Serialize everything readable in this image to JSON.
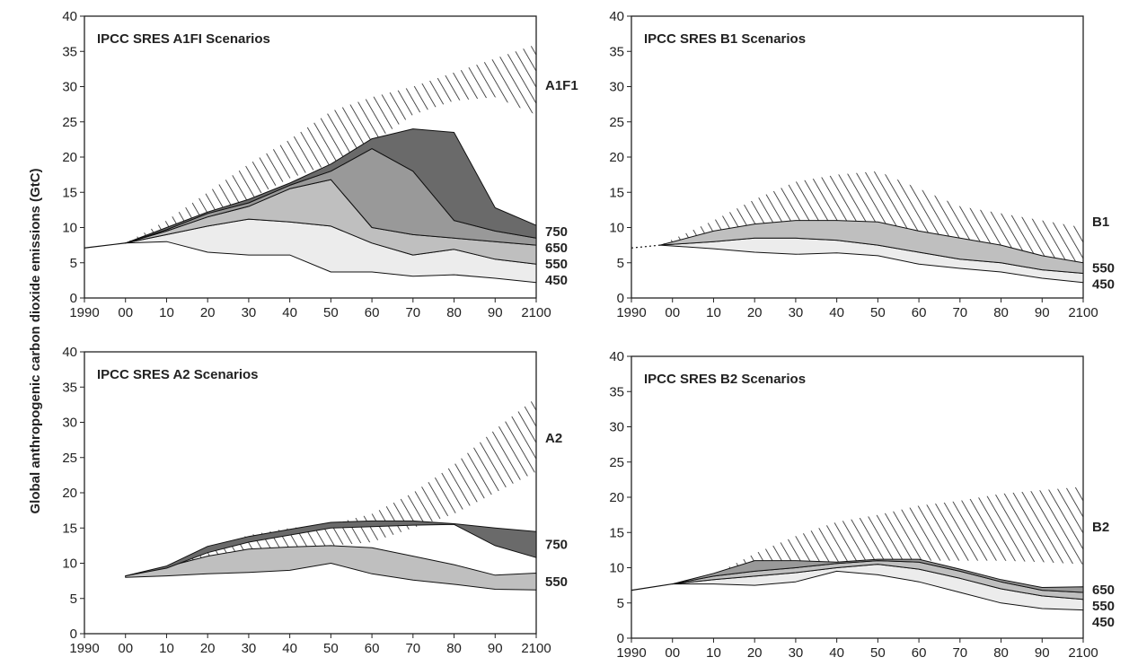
{
  "figure": {
    "ylabel": "Global anthropogenic carbon dioxide emissions (GtC)"
  },
  "chart_data": [
    {
      "type": "area",
      "title": "IPCC SRES A1FI Scenarios",
      "x": [
        1990,
        2000,
        2010,
        2020,
        2030,
        2040,
        2050,
        2060,
        2070,
        2080,
        2090,
        2100
      ],
      "xtick_labels": [
        "1990",
        "00",
        "10",
        "20",
        "30",
        "40",
        "50",
        "60",
        "70",
        "80",
        "90",
        "2100"
      ],
      "yticks": [
        0,
        5,
        10,
        15,
        20,
        25,
        30,
        35,
        40
      ],
      "ylim": [
        0,
        40
      ],
      "xlim": [
        1990,
        2100
      ],
      "baseline": {
        "x": [
          1990,
          2000
        ],
        "y": [
          7.1,
          7.8
        ]
      },
      "reference": {
        "label": "A1F1",
        "x": [
          2000,
          2010,
          2020,
          2030,
          2040,
          2050,
          2060,
          2070,
          2080,
          2090,
          2100
        ],
        "lower": [
          7.8,
          9.5,
          11.5,
          14,
          17,
          19,
          22,
          26,
          28,
          28.5,
          26
        ],
        "upper": [
          7.8,
          11,
          15,
          19,
          22.5,
          26.5,
          28.5,
          30,
          32,
          34,
          36
        ]
      },
      "bands": [
        {
          "label": "450",
          "x": [
            2000,
            2010,
            2020,
            2030,
            2040,
            2050,
            2060,
            2070,
            2080,
            2090,
            2100
          ],
          "lower": [
            7.8,
            8,
            6.5,
            6.1,
            6.1,
            3.7,
            3.7,
            3.1,
            3.3,
            2.8,
            2.2
          ],
          "upper": [
            7.8,
            9,
            10.2,
            11.2,
            10.8,
            10.2,
            7.8,
            6.1,
            6.9,
            5.5,
            4.8
          ]
        },
        {
          "label": "550",
          "x": [
            2000,
            2010,
            2020,
            2030,
            2040,
            2050,
            2060,
            2070,
            2080,
            2090,
            2100
          ],
          "lower": [
            7.8,
            9,
            10.2,
            11.2,
            10.8,
            10.2,
            7.8,
            6.1,
            6.9,
            5.5,
            4.8
          ],
          "upper": [
            7.8,
            9.5,
            11.5,
            13,
            15.5,
            16.8,
            10,
            9,
            8.5,
            8,
            7.5
          ]
        },
        {
          "label": "650",
          "x": [
            2000,
            2010,
            2020,
            2030,
            2040,
            2050,
            2060,
            2070,
            2080,
            2090,
            2100
          ],
          "lower": [
            7.8,
            9.5,
            11.5,
            13,
            15.5,
            16.8,
            10,
            9,
            8.5,
            8,
            7.5
          ],
          "upper": [
            7.8,
            9.7,
            12,
            13.5,
            16,
            18,
            21.2,
            18,
            11,
            9.5,
            8.5
          ]
        },
        {
          "label": "750",
          "x": [
            2000,
            2010,
            2020,
            2030,
            2040,
            2050,
            2060,
            2070,
            2080,
            2090,
            2100
          ],
          "lower": [
            7.8,
            9.7,
            12,
            13.5,
            16,
            18,
            21.2,
            18,
            11,
            9.5,
            8.5
          ],
          "upper": [
            7.8,
            10,
            12.2,
            14,
            16.3,
            19,
            22.6,
            24,
            23.5,
            12.8,
            10.3
          ]
        }
      ]
    },
    {
      "type": "area",
      "title": "IPCC SRES B1 Scenarios",
      "x": [
        1990,
        2000,
        2010,
        2020,
        2030,
        2040,
        2050,
        2060,
        2070,
        2080,
        2090,
        2100
      ],
      "xtick_labels": [
        "1990",
        "00",
        "10",
        "20",
        "30",
        "40",
        "50",
        "60",
        "70",
        "80",
        "90",
        "2100"
      ],
      "yticks": [
        0,
        5,
        10,
        15,
        20,
        25,
        30,
        35,
        40
      ],
      "ylim": [
        0,
        40
      ],
      "xlim": [
        1990,
        2100
      ],
      "baseline": {
        "x": [
          1990,
          1997
        ],
        "y": [
          7.1,
          7.5
        ],
        "dashed": true
      },
      "reference": {
        "label": "B1",
        "x": [
          1997,
          2010,
          2020,
          2030,
          2040,
          2050,
          2060,
          2070,
          2080,
          2090,
          2100
        ],
        "lower": [
          7.5,
          9,
          10,
          10.5,
          10.5,
          10.5,
          8.5,
          7.5,
          6.5,
          5.5,
          4.5
        ],
        "upper": [
          7.5,
          11,
          14,
          16.5,
          17.5,
          18,
          15.5,
          13,
          12,
          11,
          10
        ]
      },
      "bands": [
        {
          "label": "450",
          "x": [
            1997,
            2010,
            2020,
            2030,
            2040,
            2050,
            2060,
            2070,
            2080,
            2090,
            2100
          ],
          "lower": [
            7.5,
            7,
            6.5,
            6.2,
            6.4,
            6,
            4.8,
            4.2,
            3.7,
            2.8,
            2.2
          ],
          "upper": [
            7.5,
            8,
            8.5,
            8.5,
            8.2,
            7.5,
            6.5,
            5.5,
            5,
            4,
            3.5
          ]
        },
        {
          "label": "550",
          "x": [
            1997,
            2010,
            2020,
            2030,
            2040,
            2050,
            2060,
            2070,
            2080,
            2090,
            2100
          ],
          "lower": [
            7.5,
            8,
            8.5,
            8.5,
            8.2,
            7.5,
            6.5,
            5.5,
            5,
            4,
            3.5
          ],
          "upper": [
            7.5,
            9.5,
            10.5,
            11,
            11,
            10.8,
            9.5,
            8.5,
            7.5,
            6,
            5
          ]
        }
      ]
    },
    {
      "type": "area",
      "title": "IPCC SRES A2 Scenarios",
      "x": [
        1990,
        2000,
        2010,
        2020,
        2030,
        2040,
        2050,
        2060,
        2070,
        2080,
        2090,
        2100
      ],
      "xtick_labels": [
        "1990",
        "00",
        "10",
        "20",
        "30",
        "40",
        "50",
        "60",
        "70",
        "80",
        "90",
        "2100"
      ],
      "yticks": [
        0,
        5,
        10,
        15,
        20,
        25,
        30,
        35,
        40
      ],
      "ylim": [
        0,
        40
      ],
      "xlim": [
        1990,
        2100
      ],
      "reference": {
        "label": "A2",
        "x": [
          2000,
          2010,
          2020,
          2030,
          2040,
          2050,
          2060,
          2070,
          2080,
          2090,
          2100
        ],
        "lower": [
          8.2,
          9,
          9.5,
          10.5,
          11.5,
          12.5,
          13,
          15,
          17,
          20,
          23
        ],
        "upper": [
          8.2,
          9.5,
          12,
          14,
          15,
          15.5,
          17,
          20,
          24,
          29,
          33.5
        ]
      },
      "bands": [
        {
          "label": "550",
          "x": [
            2000,
            2010,
            2020,
            2030,
            2040,
            2050,
            2060,
            2070,
            2080,
            2090,
            2100
          ],
          "lower": [
            8,
            8.2,
            8.5,
            8.7,
            9,
            10,
            8.5,
            7.6,
            7,
            6.3,
            6.2
          ],
          "upper": [
            8.2,
            9.5,
            11,
            12,
            12.3,
            12.5,
            12.2,
            11,
            9.8,
            8.3,
            8.6
          ]
        },
        {
          "label": "750",
          "x": [
            2000,
            2010,
            2020,
            2030,
            2040,
            2050,
            2060,
            2070,
            2080,
            2090,
            2100
          ],
          "lower": [
            8.2,
            9.3,
            11.5,
            13,
            14,
            15,
            15.2,
            15.4,
            15.5,
            12.5,
            10.8
          ],
          "upper": [
            8.2,
            9.6,
            12.4,
            13.8,
            14.8,
            15.8,
            16,
            16,
            15.6,
            15,
            14.5
          ]
        }
      ]
    },
    {
      "type": "area",
      "title": "IPCC SRES B2 Scenarios",
      "x": [
        1990,
        2000,
        2010,
        2020,
        2030,
        2040,
        2050,
        2060,
        2070,
        2080,
        2090,
        2100
      ],
      "xtick_labels": [
        "1990",
        "00",
        "10",
        "20",
        "30",
        "40",
        "50",
        "60",
        "70",
        "80",
        "90",
        "2100"
      ],
      "yticks": [
        0,
        5,
        10,
        15,
        20,
        25,
        30,
        35,
        40
      ],
      "ylim": [
        0,
        40
      ],
      "xlim": [
        1990,
        2100
      ],
      "baseline": {
        "x": [
          1990,
          2000
        ],
        "y": [
          6.8,
          7.7
        ]
      },
      "reference": {
        "label": "B2",
        "x": [
          2000,
          2010,
          2020,
          2030,
          2040,
          2050,
          2060,
          2070,
          2080,
          2090,
          2100
        ],
        "lower": [
          7.7,
          8.2,
          9,
          9.5,
          10.5,
          10.8,
          11,
          11,
          11,
          10.8,
          10.5
        ],
        "upper": [
          7.7,
          9,
          12,
          14.5,
          16.5,
          17.5,
          18.8,
          19.5,
          20.5,
          21,
          21.5
        ]
      },
      "bands": [
        {
          "label": "450",
          "x": [
            2000,
            2010,
            2020,
            2030,
            2040,
            2050,
            2060,
            2070,
            2080,
            2090,
            2100
          ],
          "lower": [
            7.7,
            7.7,
            7.5,
            8,
            9.5,
            9,
            8,
            6.5,
            5,
            4.2,
            4
          ],
          "upper": [
            7.7,
            8.3,
            8.8,
            9.3,
            10,
            10.5,
            9.8,
            8.5,
            7,
            6,
            5.5
          ]
        },
        {
          "label": "550",
          "x": [
            2000,
            2010,
            2020,
            2030,
            2040,
            2050,
            2060,
            2070,
            2080,
            2090,
            2100
          ],
          "lower": [
            7.7,
            8.3,
            8.8,
            9.3,
            10,
            10.5,
            9.8,
            8.5,
            7,
            6,
            5.5
          ],
          "upper": [
            7.7,
            8.8,
            9.5,
            10,
            10.6,
            11,
            10.8,
            9.5,
            8,
            6.8,
            6.5
          ]
        },
        {
          "label": "650",
          "x": [
            2000,
            2010,
            2020,
            2030,
            2040,
            2050,
            2060,
            2070,
            2080,
            2090,
            2100
          ],
          "lower": [
            7.7,
            8.8,
            9.5,
            10,
            10.6,
            11,
            10.8,
            9.5,
            8,
            6.8,
            6.5
          ],
          "upper": [
            7.7,
            9.2,
            11,
            11,
            10.8,
            11.2,
            11.2,
            9.8,
            8.3,
            7.2,
            7.3
          ]
        }
      ]
    }
  ]
}
